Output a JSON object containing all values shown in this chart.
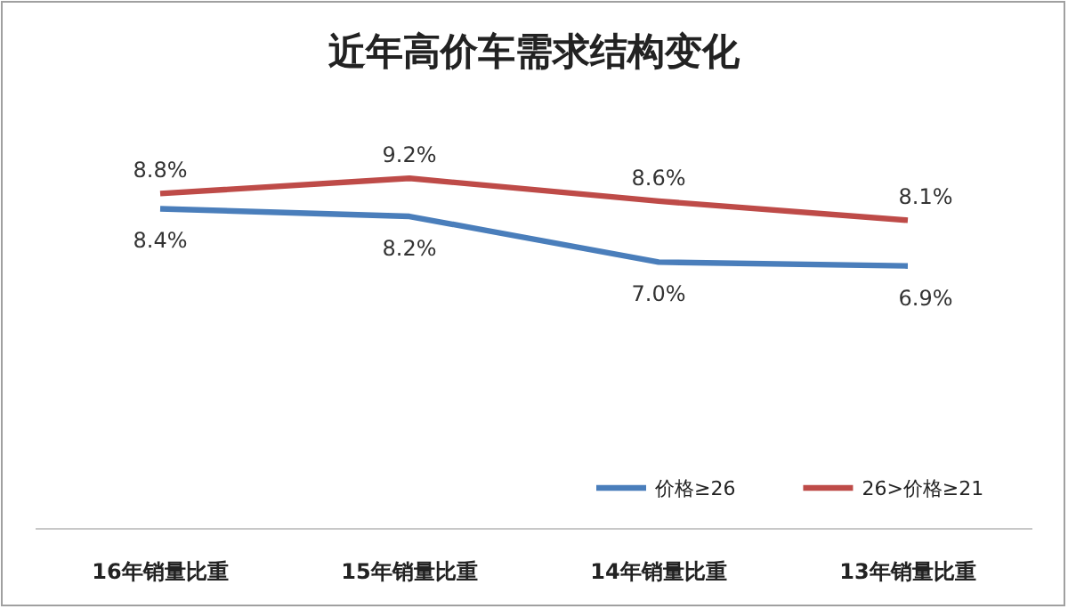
{
  "chart_data": {
    "type": "line",
    "title": "近年高价车需求结构变化",
    "categories": [
      "16年销量比重",
      "15年销量比重",
      "14年销量比重",
      "13年销量比重"
    ],
    "series": [
      {
        "name": "价格≥26",
        "color": "#4a7ebb",
        "values": [
          8.4,
          8.2,
          7.0,
          6.9
        ],
        "value_labels": [
          "8.4%",
          "8.2%",
          "7.0%",
          "6.9%"
        ]
      },
      {
        "name": "26>价格≥21",
        "color": "#be4b48",
        "values": [
          8.8,
          9.2,
          8.6,
          8.1
        ],
        "value_labels": [
          "8.8%",
          "9.2%",
          "8.6%",
          "8.1%"
        ]
      }
    ],
    "legend": "bottom right",
    "marker": "none",
    "line_style": "solid"
  }
}
